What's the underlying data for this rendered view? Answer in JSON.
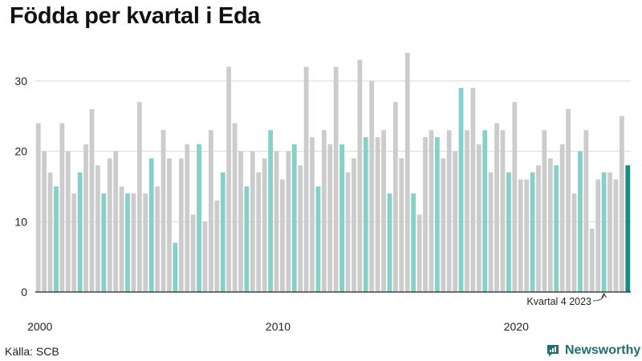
{
  "title": "Födda per kvartal i Eda",
  "source": "Källa: SCB",
  "brand": {
    "name": "Newsworthy",
    "icon": "newsworthy-logo-icon",
    "color": "#1f6f72"
  },
  "colors": {
    "bar": "#cccccc",
    "q4": "#86d0c9",
    "latest": "#1a8b80",
    "grid": "#d9d9d9",
    "axis": "#222222"
  },
  "chart_data": {
    "type": "bar",
    "title": "Födda per kvartal i Eda",
    "xlabel": "",
    "ylabel": "",
    "ylim": [
      0,
      35
    ],
    "y_ticks": [
      0,
      10,
      20,
      30
    ],
    "x_ticks": [
      {
        "label": "2000",
        "index": 0
      },
      {
        "label": "2010",
        "index": 40
      },
      {
        "label": "2020",
        "index": 80
      }
    ],
    "grid": true,
    "highlight": "Q4 bars in light teal; latest quarter in dark teal",
    "annotation": {
      "text": "Kvartal 4 2023",
      "index": 95
    },
    "start_year": 2000,
    "values": [
      24,
      20,
      17,
      15,
      24,
      20,
      14,
      17,
      21,
      26,
      18,
      14,
      19,
      20,
      15,
      14,
      14,
      27,
      14,
      19,
      15,
      23,
      19,
      7,
      19,
      21,
      11,
      21,
      10,
      23,
      13,
      17,
      32,
      24,
      20,
      15,
      20,
      17,
      19,
      23,
      20,
      16,
      20,
      21,
      18,
      32,
      22,
      15,
      23,
      21,
      32,
      21,
      17,
      19,
      33,
      22,
      30,
      22,
      23,
      14,
      27,
      19,
      34,
      14,
      11,
      22,
      23,
      22,
      19,
      23,
      20,
      29,
      23,
      29,
      21,
      23,
      17,
      24,
      23,
      17,
      27,
      16,
      16,
      17,
      18,
      23,
      19,
      18,
      21,
      26,
      14,
      20,
      23,
      9,
      16,
      17,
      17,
      16,
      25,
      18
    ]
  }
}
